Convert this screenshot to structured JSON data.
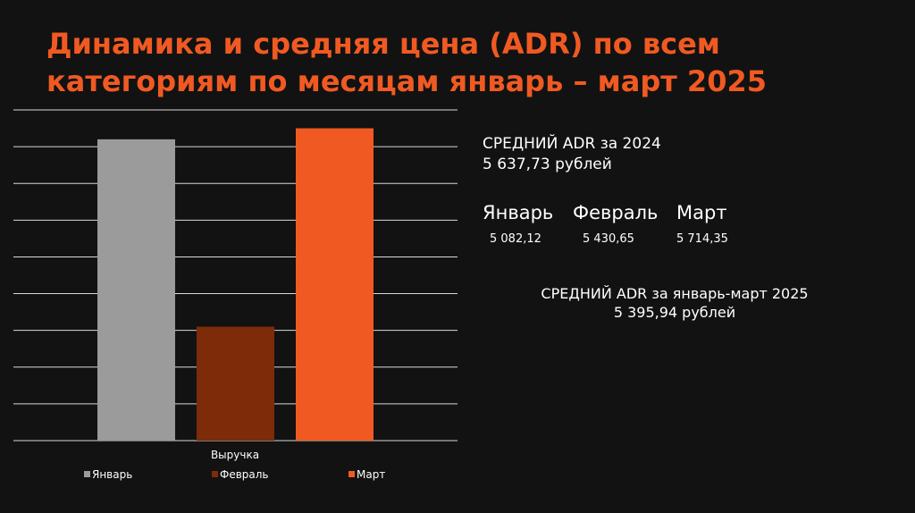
{
  "title_lines": [
    "Динамика и средняя цена (ADR) по всем",
    "категориям по месяцам январь – март 2025"
  ],
  "colors": {
    "accent": "#f05a22",
    "background": "#121212",
    "grid": "#d9d9d9"
  },
  "chart_data": {
    "type": "bar",
    "categories": [
      "Выручка"
    ],
    "xlabel": "Выручка",
    "ylabel": "",
    "ylim": [
      0,
      9
    ],
    "grid": true,
    "legend_position": "bottom",
    "series": [
      {
        "name": "Январь",
        "values": [
          8.2
        ],
        "color": "#9b9b9b"
      },
      {
        "name": "Февраль",
        "values": [
          3.1
        ],
        "color": "#7e2b0a"
      },
      {
        "name": "Март",
        "values": [
          8.5
        ],
        "color": "#f05a22"
      }
    ]
  },
  "info": {
    "adr_2024_label": "СРЕДНИЙ ADR за 2024",
    "adr_2024_value": "5 637,73 рублей",
    "months": [
      {
        "name": "Январь",
        "value": "5 082,12"
      },
      {
        "name": "Февраль",
        "value": "5 430,65"
      },
      {
        "name": "Март",
        "value": "5 714,35"
      }
    ],
    "adr_2025_label": "СРЕДНИЙ ADR за январь-март 2025",
    "adr_2025_value": "5 395,94 рублей"
  }
}
